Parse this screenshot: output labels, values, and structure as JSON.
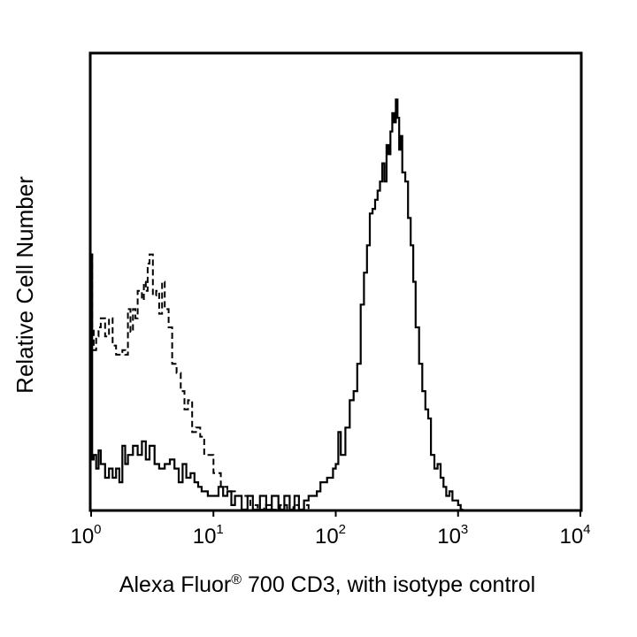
{
  "chart_data": {
    "type": "line",
    "title": "",
    "xlabel": "Alexa Fluor",
    "xlabel_sup": "®",
    "xlabel_rest": " 700 CD3, with isotype control",
    "ylabel": "Relative Cell Number",
    "x_scale": "log",
    "xlim": [
      1,
      10000
    ],
    "ylim": [
      0,
      100
    ],
    "grid": false,
    "legend": "none",
    "x_ticks": [
      {
        "value": 1,
        "base": "10",
        "exp": "0"
      },
      {
        "value": 10,
        "base": "10",
        "exp": "1"
      },
      {
        "value": 100,
        "base": "10",
        "exp": "2"
      },
      {
        "value": 1000,
        "base": "10",
        "exp": "3"
      },
      {
        "value": 10000,
        "base": "10",
        "exp": "4"
      }
    ],
    "series": [
      {
        "style": "dashed",
        "x": [
          1.0,
          1.02,
          1.05,
          1.1,
          1.15,
          1.2,
          1.3,
          1.4,
          1.5,
          1.6,
          1.7,
          1.8,
          1.9,
          2.0,
          2.1,
          2.2,
          2.3,
          2.4,
          2.5,
          2.6,
          2.7,
          2.8,
          2.9,
          3.0,
          3.2,
          3.4,
          3.6,
          3.8,
          4.0,
          4.3,
          4.6,
          5.0,
          5.4,
          5.8,
          6.2,
          6.7,
          7.2,
          7.8,
          8.4,
          9.0,
          10.0,
          11.5,
          13.0,
          15.0,
          17.0,
          20.0,
          23.0,
          26.0,
          30.0,
          35.0,
          40.0,
          45.0,
          50.0,
          55.0,
          60.0
        ],
        "y": [
          56,
          40,
          35,
          38,
          40,
          42,
          38,
          42,
          36,
          34,
          34,
          35,
          34,
          44,
          39,
          44,
          42,
          48,
          48,
          46,
          50,
          48,
          54,
          56,
          47,
          48,
          43,
          50,
          44,
          40,
          32,
          30,
          26,
          22,
          24,
          17,
          18,
          16,
          12,
          12,
          8,
          5,
          4,
          3,
          3,
          1,
          0,
          1,
          0,
          1,
          0,
          1,
          0,
          1,
          0
        ]
      },
      {
        "style": "solid",
        "x": [
          1.0,
          1.02,
          1.05,
          1.1,
          1.15,
          1.2,
          1.3,
          1.4,
          1.5,
          1.6,
          1.7,
          1.8,
          1.9,
          2.0,
          2.2,
          2.4,
          2.6,
          2.8,
          3.0,
          3.3,
          3.6,
          4.0,
          4.4,
          4.8,
          5.2,
          5.6,
          6.0,
          6.5,
          7.0,
          7.5,
          8.0,
          9.0,
          10.0,
          11.0,
          12.0,
          13.0,
          14.0,
          15.0,
          17.0,
          19.0,
          21.0,
          24.0,
          27.0,
          30.0,
          34.0,
          38.0,
          42.0,
          46.0,
          50.0,
          55.0,
          60.0,
          65.0,
          70.0,
          75.0,
          80.0,
          85.0,
          90.0,
          95.0,
          100.0,
          105.0,
          110.0,
          120.0,
          130.0,
          140.0,
          150.0,
          160.0,
          170.0,
          180.0,
          190.0,
          200.0,
          210.0,
          220.0,
          230.0,
          240.0,
          250.0,
          260.0,
          270.0,
          280.0,
          290.0,
          300.0,
          310.0,
          320.0,
          330.0,
          340.0,
          350.0,
          370.0,
          390.0,
          410.0,
          430.0,
          450.0,
          480.0,
          510.0,
          540.0,
          570.0,
          600.0,
          640.0,
          680.0,
          720.0,
          760.0,
          800.0,
          850.0,
          900.0,
          950.0,
          1000.0,
          1050.0,
          1100.0
        ],
        "y": [
          56,
          11,
          12,
          9,
          13,
          10,
          7,
          9,
          7,
          9,
          6,
          14,
          10,
          12,
          14,
          12,
          15,
          11,
          14,
          10,
          9,
          10,
          11,
          9,
          6,
          10,
          7,
          8,
          6,
          5,
          4,
          3,
          3,
          5,
          3,
          4,
          1,
          3,
          0,
          3,
          0,
          3,
          0,
          3,
          0,
          3,
          0,
          3,
          0,
          2,
          3,
          3,
          4,
          6,
          6,
          7,
          7,
          9,
          10,
          17,
          12,
          18,
          24,
          26,
          32,
          45,
          52,
          58,
          65,
          66,
          68,
          70,
          72,
          76,
          72,
          80,
          78,
          83,
          87,
          85,
          90,
          86,
          79,
          82,
          74,
          72,
          64,
          58,
          50,
          40,
          32,
          26,
          22,
          20,
          12,
          9,
          10,
          7,
          5,
          3,
          4,
          2,
          2,
          1,
          0,
          0
        ]
      }
    ]
  }
}
